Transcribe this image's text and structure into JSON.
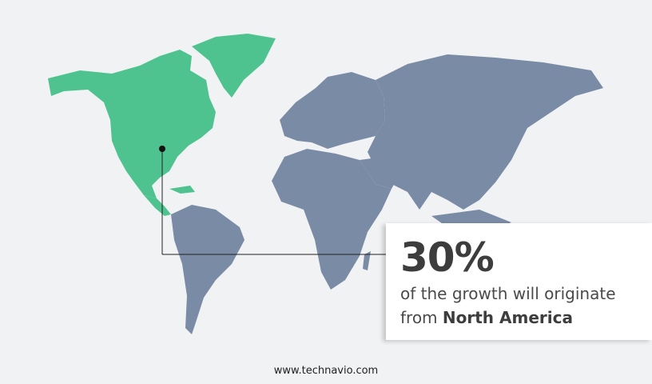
{
  "highlight": {
    "region": "North America",
    "percent": "30%",
    "text_prefix": "of the growth will originate",
    "text_from": "from",
    "region_label": "North America"
  },
  "colors": {
    "background": "#f1f2f4",
    "highlight_region": "#4fc38f",
    "other_regions": "#7a8ba6",
    "card": "#ffffff"
  },
  "footer": {
    "website": "www.technavio.com"
  }
}
